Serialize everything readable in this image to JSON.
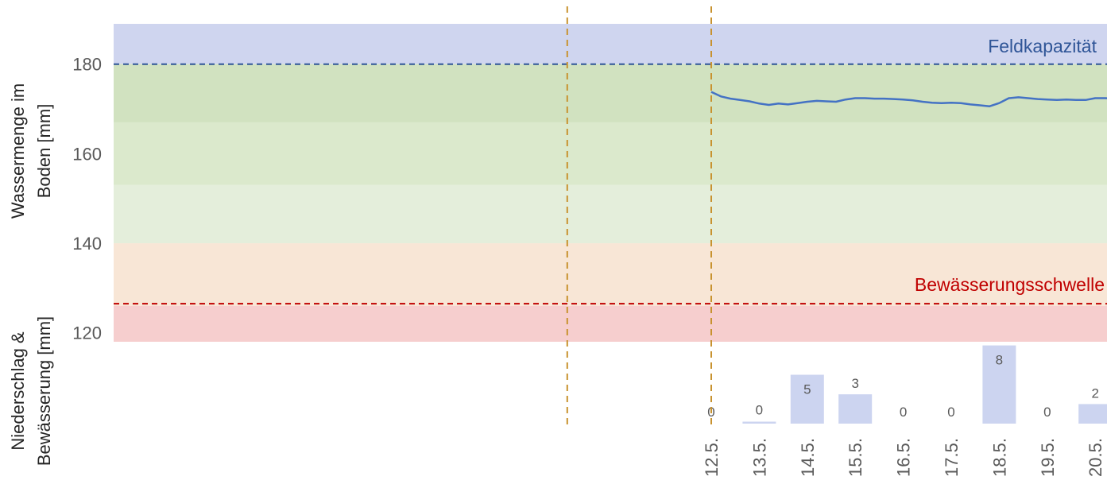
{
  "chart_data": [
    {
      "type": "line",
      "ylabel_line1": "Wassermenge im",
      "ylabel_line2": "Boden [mm]",
      "yticks": [
        120,
        140,
        160,
        180
      ],
      "ylim": [
        118,
        189
      ],
      "grid": false,
      "zones": [
        {
          "from": 180,
          "to": 189,
          "color": "#cfd5ef"
        },
        {
          "from": 167,
          "to": 180,
          "color": "#d1e2c0"
        },
        {
          "from": 153,
          "to": 167,
          "color": "#dbe9cc"
        },
        {
          "from": 140,
          "to": 153,
          "color": "#e4eedb"
        },
        {
          "from": 126,
          "to": 140,
          "color": "#f8e6d6"
        },
        {
          "from": 118,
          "to": 126,
          "color": "#f6cece"
        }
      ],
      "thresholds": [
        {
          "name": "Feldkapazität",
          "value": 180,
          "color": "#2f5597"
        },
        {
          "name": "Bewässerungsschwelle",
          "value": 126.5,
          "color": "#c00000"
        }
      ],
      "series": [
        {
          "color": "#4472c4",
          "x": [
            12.0,
            12.2,
            12.4,
            12.6,
            12.8,
            13.0,
            13.2,
            13.4,
            13.6,
            13.8,
            14.0,
            14.2,
            14.4,
            14.6,
            14.8,
            15.0,
            15.2,
            15.4,
            15.6,
            15.8,
            16.0,
            16.2,
            16.4,
            16.6,
            16.8,
            17.0,
            17.2,
            17.4,
            17.6,
            17.8,
            18.0,
            18.2,
            18.4,
            18.6,
            18.8,
            19.0,
            19.2,
            19.4,
            19.6,
            19.8,
            20.0,
            20.2,
            20.4,
            20.6,
            20.8
          ],
          "y": [
            173.8,
            172.8,
            172.3,
            172.0,
            171.7,
            171.2,
            170.9,
            171.2,
            171.0,
            171.3,
            171.6,
            171.8,
            171.7,
            171.6,
            172.1,
            172.4,
            172.4,
            172.3,
            172.3,
            172.2,
            172.1,
            171.9,
            171.6,
            171.4,
            171.3,
            171.4,
            171.3,
            171.0,
            170.8,
            170.6,
            171.3,
            172.4,
            172.6,
            172.4,
            172.2,
            172.1,
            172.0,
            172.1,
            172.0,
            172.0,
            172.4,
            172.4,
            172.3,
            172.4,
            171.8
          ]
        }
      ],
      "event_markers": [
        {
          "x": 9.0,
          "style": "dashed",
          "color": "#c8922f"
        },
        {
          "x": 12.0,
          "style": "dashed",
          "color": "#c8922f"
        }
      ]
    },
    {
      "type": "bar",
      "ylabel_line1": "Niederschlag &",
      "ylabel_line2": "Bewässerung [mm]",
      "categories": [
        "12.5.",
        "13.5.",
        "14.5.",
        "15.5.",
        "16.5.",
        "17.5.",
        "18.5.",
        "19.5.",
        "20.5."
      ],
      "values": [
        0,
        0.2,
        5,
        3,
        0,
        0,
        8,
        0,
        2
      ],
      "data_labels": [
        "0",
        "0",
        "5",
        "3",
        "0",
        "0",
        "8",
        "0",
        "2"
      ],
      "color": "#ccd4f0"
    }
  ]
}
